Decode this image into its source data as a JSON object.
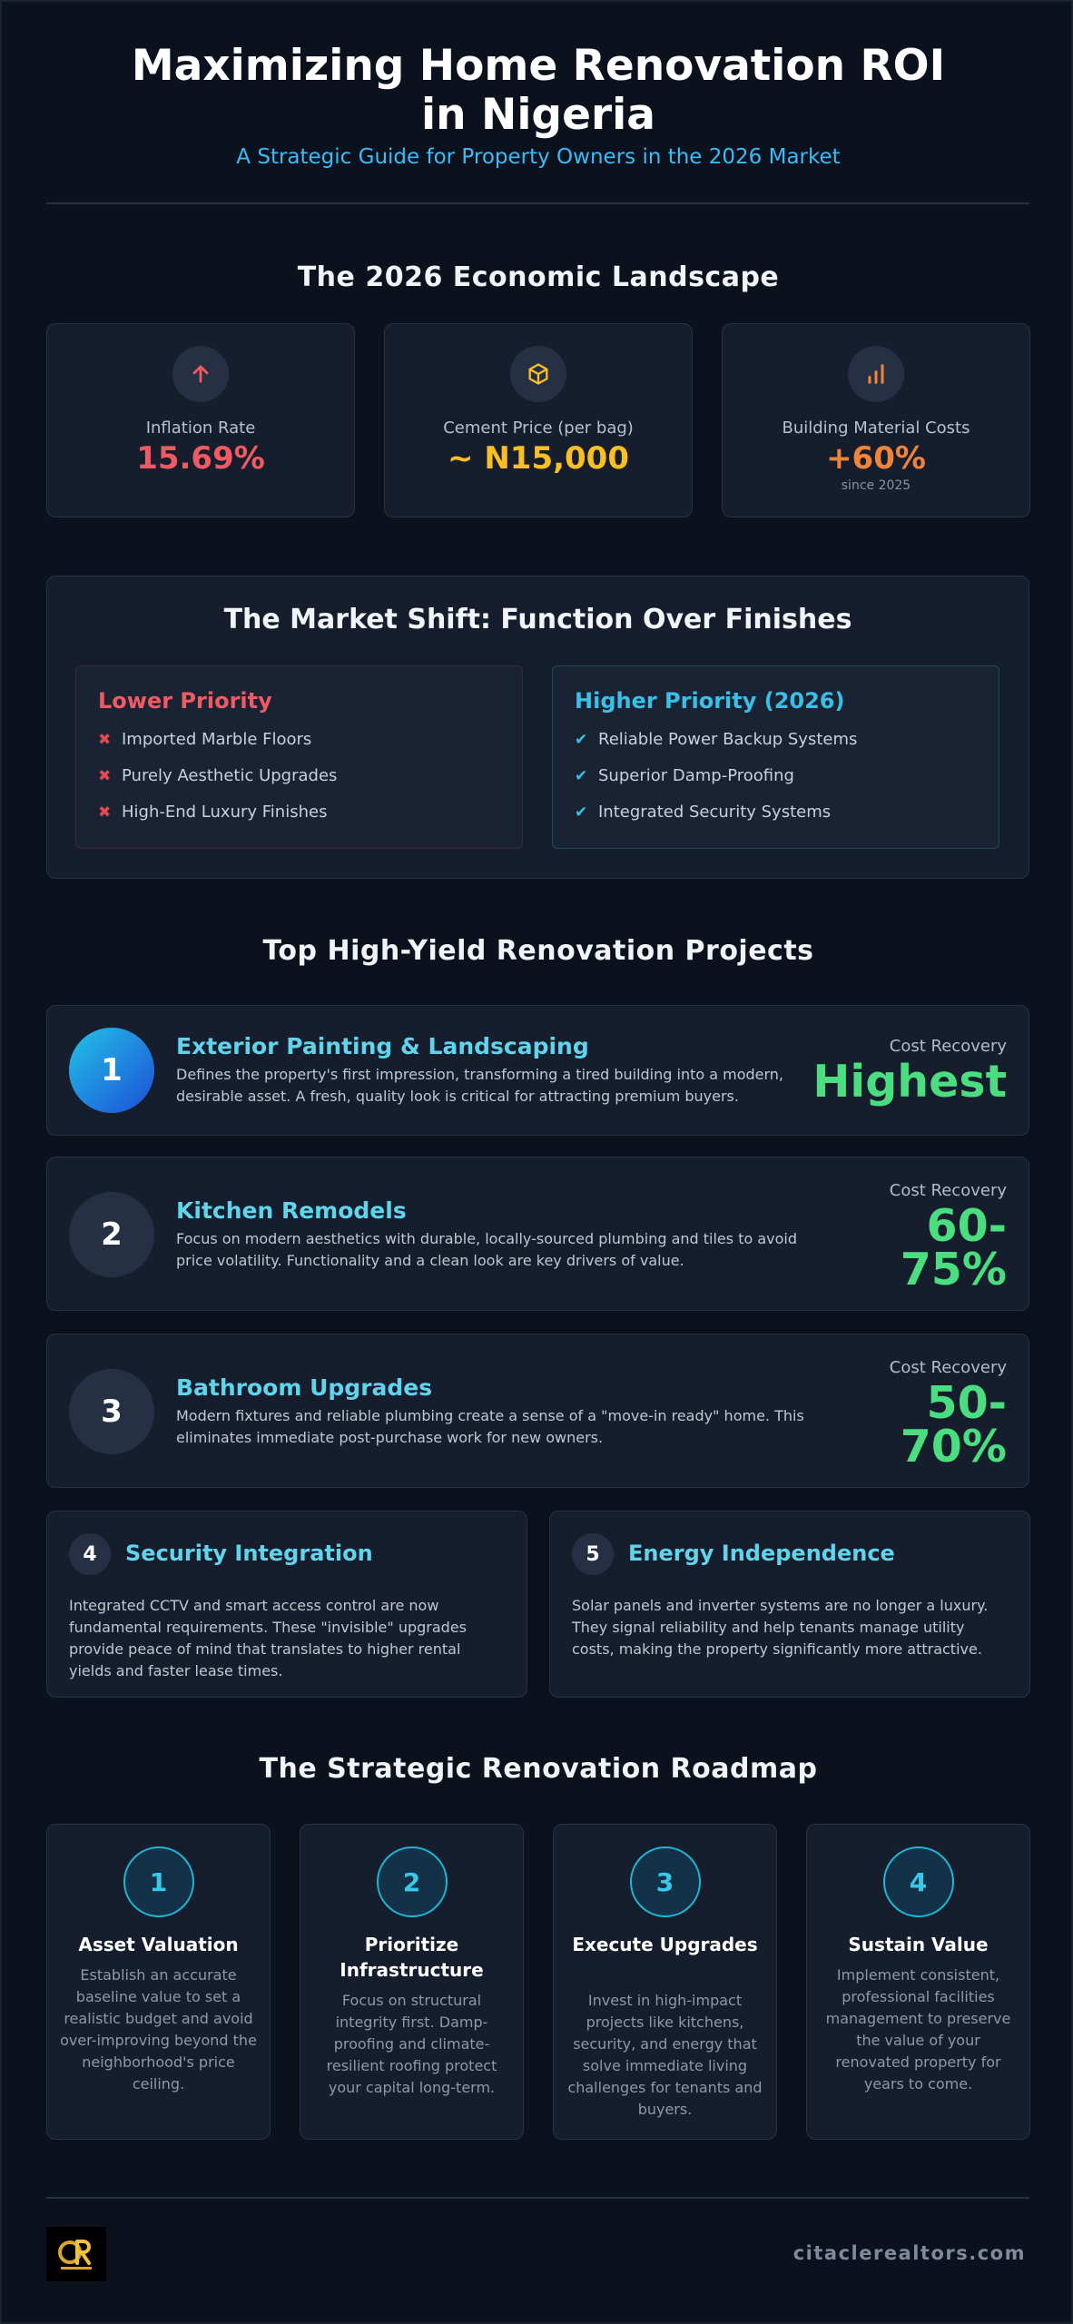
{
  "header": {
    "title": "Maximizing Home Renovation ROI in Nigeria",
    "subtitle": "A Strategic Guide for Property Owners in the 2026 Market"
  },
  "landscape": {
    "title": "The 2026 Economic Landscape",
    "stats": [
      {
        "label": "Inflation Rate",
        "value": "15.69%",
        "note": "",
        "icon": "arrow-up-icon",
        "color": "#f05a63"
      },
      {
        "label": "Cement Price (per bag)",
        "value": "~ N15,000",
        "note": "",
        "icon": "box-icon",
        "color": "#fbbf24"
      },
      {
        "label": "Building Material Costs",
        "value": "+60%",
        "note": "since 2025",
        "icon": "bar-chart-icon",
        "color": "#f0843a"
      }
    ]
  },
  "market_shift": {
    "title": "The Market Shift: Function Over Finishes",
    "lower": {
      "heading": "Lower Priority",
      "items": [
        "Imported Marble Floors",
        "Purely Aesthetic Upgrades",
        "High-End Luxury Finishes"
      ]
    },
    "higher": {
      "heading": "Higher Priority (2026)",
      "items": [
        "Reliable Power Backup Systems",
        "Superior Damp-Proofing",
        "Integrated Security Systems"
      ]
    }
  },
  "projects": {
    "title": "Top High-Yield Renovation Projects",
    "cost_recovery_label": "Cost Recovery",
    "items": [
      {
        "num": "1",
        "title": "Exterior Painting & Landscaping",
        "desc": "Defines the property's first impression, transforming a tired building into a modern, desirable asset. A fresh, quality look is critical for attracting premium buyers.",
        "recovery_1": "Highest",
        "recovery_2": ""
      },
      {
        "num": "2",
        "title": "Kitchen Remodels",
        "desc": "Focus on modern aesthetics with durable, locally-sourced plumbing and tiles to avoid price volatility. Functionality and a clean look are key drivers of value.",
        "recovery_1": "60-",
        "recovery_2": "75%"
      },
      {
        "num": "3",
        "title": "Bathroom Upgrades",
        "desc": "Modern fixtures and reliable plumbing create a sense of a \"move-in ready\" home. This eliminates immediate post-purchase work for new owners.",
        "recovery_1": "50-",
        "recovery_2": "70%"
      }
    ],
    "extras": [
      {
        "num": "4",
        "title": "Security Integration",
        "desc": "Integrated CCTV and smart access control are now fundamental requirements. These \"invisible\" upgrades provide peace of mind that translates to higher rental yields and faster lease times."
      },
      {
        "num": "5",
        "title": "Energy Independence",
        "desc": "Solar panels and inverter systems are no longer a luxury. They signal reliability and help tenants manage utility costs, making the property significantly more attractive."
      }
    ]
  },
  "roadmap": {
    "title": "The Strategic Renovation Roadmap",
    "steps": [
      {
        "num": "1",
        "title": "Asset Valuation",
        "desc": "Establish an accurate baseline value to set a realistic budget and avoid over-improving beyond the neighborhood's price ceiling."
      },
      {
        "num": "2",
        "title": "Prioritize Infrastructure",
        "desc": "Focus on structural integrity first. Damp-proofing and climate-resilient roofing protect your capital long-term."
      },
      {
        "num": "3",
        "title": "Execute Upgrades",
        "desc": "Invest in high-impact projects like kitchens, security, and energy that solve immediate living challenges for tenants and buyers."
      },
      {
        "num": "4",
        "title": "Sustain Value",
        "desc": "Implement consistent, professional facilities management to preserve the value of your renovated property for years to come."
      }
    ]
  },
  "footer": {
    "url": "citaclerealtors.com"
  }
}
